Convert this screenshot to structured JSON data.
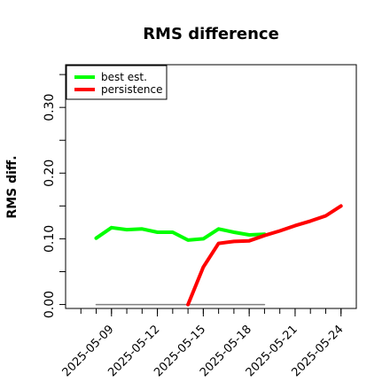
{
  "chart_data": {
    "type": "line",
    "title": "RMS difference",
    "xlabel": "",
    "ylabel": "RMS diff.",
    "ylim": [
      -0.006,
      0.365
    ],
    "xlim": [
      "2025-05-06",
      "2025-05-25"
    ],
    "yticks": [
      0.0,
      0.1,
      0.2,
      0.3
    ],
    "ytick_labels": [
      "0.00",
      "0.10",
      "0.20",
      "0.30"
    ],
    "xtick_labels": [
      "2025-05-09",
      "2025-05-12",
      "2025-05-15",
      "2025-05-18",
      "2025-05-21",
      "2025-05-24"
    ],
    "grid": false,
    "legend": "top-left",
    "series": [
      {
        "name": "best est.",
        "color": "#00ff00",
        "x": [
          "2025-05-08",
          "2025-05-09",
          "2025-05-10",
          "2025-05-11",
          "2025-05-12",
          "2025-05-13",
          "2025-05-14",
          "2025-05-15",
          "2025-05-16",
          "2025-05-17",
          "2025-05-18",
          "2025-05-19"
        ],
        "y": [
          0.101,
          0.117,
          0.114,
          0.115,
          0.11,
          0.11,
          0.098,
          0.1,
          0.115,
          0.11,
          0.106,
          0.107
        ]
      },
      {
        "name": "persistence",
        "color": "#ff0000",
        "x": [
          "2025-05-14",
          "2025-05-15",
          "2025-05-16",
          "2025-05-17",
          "2025-05-18",
          "2025-05-19",
          "2025-05-20",
          "2025-05-21",
          "2025-05-22",
          "2025-05-23",
          "2025-05-24"
        ],
        "y": [
          0.0,
          0.057,
          0.093,
          0.096,
          0.097,
          0.105,
          0.112,
          0.12,
          0.127,
          0.135,
          0.15
        ]
      },
      {
        "color": "#808080",
        "x": [
          "2025-05-08",
          "2025-05-19"
        ],
        "y": [
          0.0,
          0.0
        ]
      }
    ]
  }
}
